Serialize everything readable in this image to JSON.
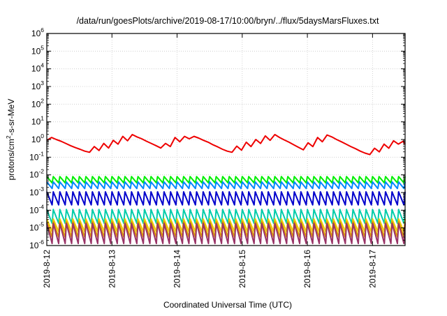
{
  "chart_data": {
    "type": "line",
    "title": "/data/run/goesPlots/archive/2019-08-17/10:00/bryn/../flux/5daysMarsFluxes.txt",
    "xlabel": "Coordinated Universal Time (UTC)",
    "ylabel": {
      "base": "protons/cm",
      "superscript": "2",
      "tail": "-s-sr-MeV"
    },
    "y_scale": "log",
    "y_range": [
      1e-06,
      1000000.0
    ],
    "y_ticks": [
      {
        "value": 1e-06,
        "base": "10",
        "exp": "-6"
      },
      {
        "value": 1e-05,
        "base": "10",
        "exp": "-5"
      },
      {
        "value": 0.0001,
        "base": "10",
        "exp": "-4"
      },
      {
        "value": 0.001,
        "base": "10",
        "exp": "-3"
      },
      {
        "value": 0.01,
        "base": "10",
        "exp": "-2"
      },
      {
        "value": 0.1,
        "base": "10",
        "exp": "-1"
      },
      {
        "value": 1,
        "base": "10",
        "exp": "0"
      },
      {
        "value": 10,
        "base": "10",
        "exp": "1"
      },
      {
        "value": 100,
        "base": "10",
        "exp": "2"
      },
      {
        "value": 1000,
        "base": "10",
        "exp": "3"
      },
      {
        "value": 10000,
        "base": "10",
        "exp": "4"
      },
      {
        "value": 100000,
        "base": "10",
        "exp": "5"
      },
      {
        "value": 1000000,
        "base": "10",
        "exp": "6"
      }
    ],
    "x_range": [
      "2019-08-12 00:00",
      "2019-08-17 12:00"
    ],
    "x_ticks": [
      {
        "label": "2019-8-12",
        "date": "2019-08-12"
      },
      {
        "label": "2019-8-13",
        "date": "2019-08-13"
      },
      {
        "label": "2019-8-14",
        "date": "2019-08-14"
      },
      {
        "label": "2019-8-15",
        "date": "2019-08-15"
      },
      {
        "label": "2019-8-16",
        "date": "2019-08-16"
      },
      {
        "label": "2019-8-17",
        "date": "2019-08-17"
      }
    ],
    "grid": true,
    "series": [
      {
        "color": "#ee0000",
        "x": [
          "2019-08-12 00:00",
          "2019-08-12 01:45",
          "2019-08-12 03:30",
          "2019-08-12 05:15",
          "2019-08-12 07:00",
          "2019-08-12 08:45",
          "2019-08-12 10:30",
          "2019-08-12 12:15",
          "2019-08-12 14:00",
          "2019-08-12 15:45",
          "2019-08-12 17:30",
          "2019-08-12 19:15",
          "2019-08-12 21:00",
          "2019-08-12 22:45",
          "2019-08-13 00:30",
          "2019-08-13 02:15",
          "2019-08-13 04:00",
          "2019-08-13 05:45",
          "2019-08-13 07:30",
          "2019-08-13 09:15",
          "2019-08-13 11:00",
          "2019-08-13 12:45",
          "2019-08-13 14:30",
          "2019-08-13 16:15",
          "2019-08-13 18:00",
          "2019-08-13 19:45",
          "2019-08-13 21:30",
          "2019-08-13 23:15",
          "2019-08-14 01:00",
          "2019-08-14 02:45",
          "2019-08-14 04:30",
          "2019-08-14 06:15",
          "2019-08-14 08:00",
          "2019-08-14 09:45",
          "2019-08-14 11:30",
          "2019-08-14 13:15",
          "2019-08-14 15:00",
          "2019-08-14 16:45",
          "2019-08-14 18:30",
          "2019-08-14 20:15",
          "2019-08-14 22:00",
          "2019-08-14 23:45",
          "2019-08-15 01:30",
          "2019-08-15 03:15",
          "2019-08-15 05:00",
          "2019-08-15 06:45",
          "2019-08-15 08:30",
          "2019-08-15 10:15",
          "2019-08-15 12:00",
          "2019-08-15 13:45",
          "2019-08-15 15:30",
          "2019-08-15 17:15",
          "2019-08-15 19:00",
          "2019-08-15 20:45",
          "2019-08-15 22:30",
          "2019-08-16 00:15",
          "2019-08-16 02:00",
          "2019-08-16 03:45",
          "2019-08-16 05:30",
          "2019-08-16 07:15",
          "2019-08-16 09:00",
          "2019-08-16 10:45",
          "2019-08-16 12:30",
          "2019-08-16 14:15",
          "2019-08-16 16:00",
          "2019-08-16 17:45",
          "2019-08-16 19:30",
          "2019-08-16 21:15",
          "2019-08-16 23:00",
          "2019-08-17 00:45",
          "2019-08-17 02:30",
          "2019-08-17 04:15",
          "2019-08-17 06:00",
          "2019-08-17 07:45",
          "2019-08-17 09:30",
          "2019-08-17 11:15",
          "2019-08-17 12:00"
        ],
        "y": [
          0.9,
          1.3,
          1.0,
          0.8,
          0.6,
          0.45,
          0.35,
          0.28,
          0.22,
          0.19,
          0.4,
          0.24,
          0.6,
          0.33,
          0.9,
          0.55,
          1.5,
          0.85,
          1.9,
          1.4,
          1.1,
          0.8,
          0.6,
          0.45,
          0.33,
          0.6,
          0.4,
          1.3,
          0.75,
          1.5,
          1.1,
          1.5,
          1.2,
          0.9,
          0.7,
          0.5,
          0.38,
          0.28,
          0.22,
          0.19,
          0.42,
          0.25,
          0.7,
          0.4,
          1.0,
          0.6,
          1.6,
          0.9,
          1.9,
          1.3,
          0.95,
          0.7,
          0.5,
          0.36,
          0.26,
          0.65,
          0.4,
          1.3,
          0.75,
          1.8,
          1.4,
          1.0,
          0.75,
          0.55,
          0.4,
          0.3,
          0.22,
          0.17,
          0.14,
          0.32,
          0.2,
          0.55,
          0.32,
          0.85,
          0.55,
          0.8,
          0.55
        ]
      },
      {
        "color": "#00ee00",
        "kind": "sawtooth",
        "x_start": "2019-08-12 00:00",
        "x_end": "2019-08-17 12:00",
        "teeth": 55,
        "peak": 0.008,
        "trough": 0.0035
      },
      {
        "color": "#0088ff",
        "kind": "sawtooth",
        "x_start": "2019-08-12 00:00",
        "x_end": "2019-08-17 12:00",
        "teeth": 55,
        "peak": 0.004,
        "trough": 0.0017
      },
      {
        "color": "#0000cc",
        "kind": "sawtooth",
        "x_start": "2019-08-12 00:00",
        "x_end": "2019-08-17 12:00",
        "teeth": 55,
        "peak": 0.0011,
        "trough": 0.0002
      },
      {
        "color": "#00ccaa",
        "kind": "sawtooth",
        "x_start": "2019-08-12 00:00",
        "x_end": "2019-08-17 12:00",
        "teeth": 55,
        "peak": 0.00011,
        "trough": 1.8e-05
      },
      {
        "color": "#eecc00",
        "kind": "sawtooth",
        "x_start": "2019-08-12 00:00",
        "x_end": "2019-08-17 12:00",
        "teeth": 55,
        "peak": 3.2e-05,
        "trough": 6e-06
      },
      {
        "color": "#dd9900",
        "kind": "sawtooth",
        "x_start": "2019-08-12 00:00",
        "x_end": "2019-08-17 12:00",
        "teeth": 55,
        "peak": 2.2e-05,
        "trough": 3e-06
      },
      {
        "color": "#993366",
        "kind": "sawtooth",
        "x_start": "2019-08-12 00:00",
        "x_end": "2019-08-17 12:00",
        "teeth": 55,
        "peak": 1.8e-05,
        "trough": 1.3e-06
      }
    ]
  }
}
